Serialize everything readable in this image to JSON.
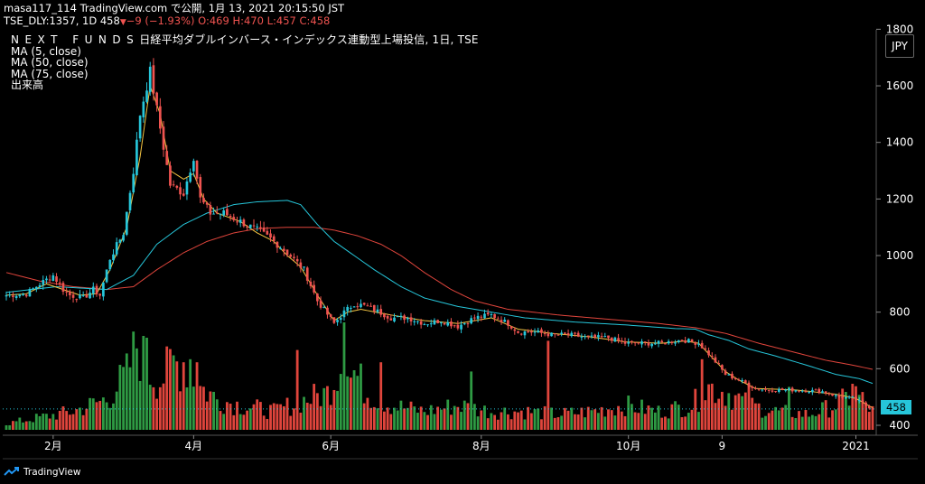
{
  "header": {
    "line1": "masa117_114 TradingView.com で公開, 1月 13, 2021 20:15:50 JST",
    "symbol": "TSE_DLY:1357, 1D 458",
    "arrow": "▼",
    "change": "−9 (−1.93%)",
    "ohlc": "O:469 H:470 L:457 C:458"
  },
  "legend": {
    "title_spaced": "NEXT FUNDS",
    "title_rest": "日経平均ダブルインバース・インデックス連動型上場投信, 1日, TSE",
    "lines": [
      "MA (5, close)",
      "MA (50, close)",
      "MA (75, close)",
      "出来高"
    ]
  },
  "currency": "JPY",
  "last_price": "458",
  "footer": {
    "brand": "TradingView",
    "icon": "tradingview-logo-icon"
  },
  "colors": {
    "up": "#26c6da",
    "down": "#ef5350",
    "vol_up": "#2e9a43",
    "vol_down": "#e0453c",
    "ma5": "#f5c542",
    "ma50": "#26c6da",
    "ma75": "#e0453c",
    "background": "#000000",
    "price_tag": "#26c6da"
  },
  "chart_data": {
    "type": "candlestick",
    "y_axis_ticks": [
      400,
      600,
      800,
      1000,
      1200,
      1400,
      1600,
      1800
    ],
    "ylim": [
      390,
      1800
    ],
    "x_axis_labels": [
      "2月",
      "4月",
      "6月",
      "8月",
      "10月",
      "9",
      "2021"
    ],
    "x_axis_label_index": [
      14,
      56,
      97,
      142,
      186,
      214,
      254
    ],
    "num_bars": 260,
    "close_anchors": [
      [
        0,
        860
      ],
      [
        6,
        865
      ],
      [
        10,
        900
      ],
      [
        14,
        930
      ],
      [
        17,
        880
      ],
      [
        19,
        860
      ],
      [
        23,
        850
      ],
      [
        26,
        880
      ],
      [
        28,
        860
      ],
      [
        31,
        990
      ],
      [
        35,
        1080
      ],
      [
        38,
        1300
      ],
      [
        40,
        1500
      ],
      [
        43,
        1650
      ],
      [
        46,
        1450
      ],
      [
        49,
        1250
      ],
      [
        53,
        1220
      ],
      [
        56,
        1350
      ],
      [
        58,
        1200
      ],
      [
        61,
        1150
      ],
      [
        65,
        1150
      ],
      [
        70,
        1120
      ],
      [
        75,
        1090
      ],
      [
        79,
        1060
      ],
      [
        84,
        1010
      ],
      [
        89,
        950
      ],
      [
        93,
        840
      ],
      [
        98,
        760
      ],
      [
        101,
        800
      ],
      [
        104,
        830
      ],
      [
        108,
        820
      ],
      [
        115,
        780
      ],
      [
        120,
        780
      ],
      [
        125,
        760
      ],
      [
        130,
        770
      ],
      [
        135,
        750
      ],
      [
        140,
        780
      ],
      [
        145,
        790
      ],
      [
        150,
        760
      ],
      [
        153,
        730
      ],
      [
        158,
        730
      ],
      [
        163,
        720
      ],
      [
        168,
        720
      ],
      [
        174,
        710
      ],
      [
        180,
        710
      ],
      [
        185,
        690
      ],
      [
        190,
        690
      ],
      [
        196,
        690
      ],
      [
        201,
        700
      ],
      [
        203,
        700
      ],
      [
        207,
        690
      ],
      [
        211,
        640
      ],
      [
        215,
        580
      ],
      [
        219,
        560
      ],
      [
        224,
        530
      ],
      [
        229,
        525
      ],
      [
        236,
        525
      ],
      [
        244,
        520
      ],
      [
        249,
        500
      ],
      [
        253,
        495
      ],
      [
        256,
        478
      ],
      [
        259,
        458
      ]
    ],
    "volume_anchors": [
      [
        0,
        10
      ],
      [
        10,
        20
      ],
      [
        20,
        30
      ],
      [
        30,
        50
      ],
      [
        36,
        90
      ],
      [
        39,
        140
      ],
      [
        42,
        100
      ],
      [
        46,
        80
      ],
      [
        50,
        110
      ],
      [
        54,
        100
      ],
      [
        58,
        70
      ],
      [
        63,
        50
      ],
      [
        70,
        40
      ],
      [
        80,
        30
      ],
      [
        90,
        50
      ],
      [
        96,
        60
      ],
      [
        101,
        120
      ],
      [
        108,
        60
      ],
      [
        115,
        40
      ],
      [
        125,
        30
      ],
      [
        135,
        40
      ],
      [
        145,
        30
      ],
      [
        155,
        30
      ],
      [
        165,
        25
      ],
      [
        175,
        30
      ],
      [
        185,
        40
      ],
      [
        195,
        30
      ],
      [
        205,
        40
      ],
      [
        210,
        70
      ],
      [
        216,
        60
      ],
      [
        222,
        40
      ],
      [
        230,
        30
      ],
      [
        240,
        25
      ],
      [
        248,
        40
      ],
      [
        254,
        60
      ],
      [
        259,
        30
      ]
    ],
    "volume_spikes": [
      [
        38,
        160
      ],
      [
        42,
        150
      ],
      [
        53,
        110
      ],
      [
        55,
        115
      ],
      [
        57,
        110
      ],
      [
        87,
        130
      ],
      [
        101,
        175
      ],
      [
        103,
        85
      ],
      [
        112,
        110
      ],
      [
        139,
        95
      ],
      [
        162,
        145
      ],
      [
        208,
        115
      ],
      [
        222,
        75
      ],
      [
        234,
        70
      ],
      [
        253,
        75
      ]
    ],
    "ma5_anchors": [
      [
        0,
        860
      ],
      [
        6,
        865
      ],
      [
        12,
        900
      ],
      [
        17,
        880
      ],
      [
        22,
        860
      ],
      [
        27,
        865
      ],
      [
        31,
        950
      ],
      [
        36,
        1100
      ],
      [
        40,
        1350
      ],
      [
        43,
        1600
      ],
      [
        46,
        1500
      ],
      [
        49,
        1300
      ],
      [
        53,
        1270
      ],
      [
        56,
        1290
      ],
      [
        59,
        1200
      ],
      [
        63,
        1150
      ],
      [
        70,
        1120
      ],
      [
        75,
        1080
      ],
      [
        80,
        1050
      ],
      [
        84,
        1000
      ],
      [
        88,
        960
      ],
      [
        93,
        860
      ],
      [
        98,
        770
      ],
      [
        102,
        800
      ],
      [
        106,
        810
      ],
      [
        115,
        790
      ],
      [
        125,
        770
      ],
      [
        135,
        760
      ],
      [
        145,
        780
      ],
      [
        153,
        740
      ],
      [
        163,
        725
      ],
      [
        175,
        712
      ],
      [
        185,
        695
      ],
      [
        196,
        690
      ],
      [
        203,
        698
      ],
      [
        207,
        690
      ],
      [
        211,
        640
      ],
      [
        215,
        590
      ],
      [
        219,
        560
      ],
      [
        224,
        530
      ],
      [
        236,
        525
      ],
      [
        248,
        510
      ],
      [
        254,
        495
      ],
      [
        259,
        462
      ]
    ],
    "ma50_anchors": [
      [
        0,
        870
      ],
      [
        15,
        890
      ],
      [
        30,
        880
      ],
      [
        38,
        930
      ],
      [
        45,
        1040
      ],
      [
        53,
        1110
      ],
      [
        60,
        1150
      ],
      [
        68,
        1180
      ],
      [
        75,
        1190
      ],
      [
        84,
        1195
      ],
      [
        88,
        1180
      ],
      [
        93,
        1110
      ],
      [
        98,
        1050
      ],
      [
        104,
        1000
      ],
      [
        110,
        950
      ],
      [
        118,
        890
      ],
      [
        125,
        850
      ],
      [
        135,
        820
      ],
      [
        145,
        800
      ],
      [
        155,
        780
      ],
      [
        170,
        765
      ],
      [
        185,
        755
      ],
      [
        200,
        742
      ],
      [
        206,
        740
      ],
      [
        210,
        720
      ],
      [
        216,
        700
      ],
      [
        222,
        670
      ],
      [
        230,
        645
      ],
      [
        240,
        610
      ],
      [
        248,
        580
      ],
      [
        255,
        565
      ],
      [
        259,
        548
      ]
    ],
    "ma75_anchors": [
      [
        0,
        940
      ],
      [
        10,
        910
      ],
      [
        20,
        890
      ],
      [
        30,
        880
      ],
      [
        38,
        890
      ],
      [
        45,
        950
      ],
      [
        53,
        1010
      ],
      [
        60,
        1050
      ],
      [
        68,
        1080
      ],
      [
        75,
        1095
      ],
      [
        84,
        1100
      ],
      [
        92,
        1100
      ],
      [
        98,
        1090
      ],
      [
        105,
        1070
      ],
      [
        112,
        1040
      ],
      [
        118,
        1000
      ],
      [
        125,
        940
      ],
      [
        133,
        880
      ],
      [
        140,
        840
      ],
      [
        150,
        810
      ],
      [
        165,
        790
      ],
      [
        180,
        775
      ],
      [
        195,
        760
      ],
      [
        206,
        745
      ],
      [
        215,
        725
      ],
      [
        225,
        690
      ],
      [
        235,
        660
      ],
      [
        245,
        630
      ],
      [
        252,
        615
      ],
      [
        259,
        598
      ]
    ]
  }
}
